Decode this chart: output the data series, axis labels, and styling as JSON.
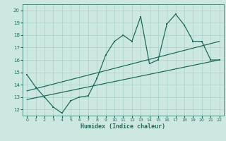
{
  "main_x": [
    0,
    1,
    2,
    3,
    4,
    5,
    6,
    7,
    8,
    9,
    10,
    11,
    12,
    13,
    14,
    15,
    16,
    17,
    18,
    19,
    20,
    21,
    22
  ],
  "main_y": [
    14.8,
    13.8,
    13.0,
    12.2,
    11.7,
    12.7,
    13.0,
    13.1,
    14.5,
    16.4,
    17.5,
    18.0,
    17.5,
    19.5,
    15.7,
    16.0,
    18.9,
    19.7,
    18.8,
    17.5,
    17.5,
    16.0,
    16.0
  ],
  "trend1_x": [
    0,
    22
  ],
  "trend1_y": [
    13.5,
    17.5
  ],
  "trend2_x": [
    0,
    22
  ],
  "trend2_y": [
    12.8,
    16.0
  ],
  "line_color": "#1e6b5e",
  "bg_color": "#cce8e0",
  "grid_color": "#b0d4cc",
  "xlabel": "Humidex (Indice chaleur)",
  "ylim": [
    11.5,
    20.5
  ],
  "xlim": [
    -0.5,
    22.5
  ],
  "yticks": [
    12,
    13,
    14,
    15,
    16,
    17,
    18,
    19,
    20
  ],
  "xticks": [
    0,
    1,
    2,
    3,
    4,
    5,
    6,
    7,
    8,
    9,
    10,
    11,
    12,
    13,
    14,
    15,
    16,
    17,
    18,
    19,
    20,
    21,
    22
  ]
}
